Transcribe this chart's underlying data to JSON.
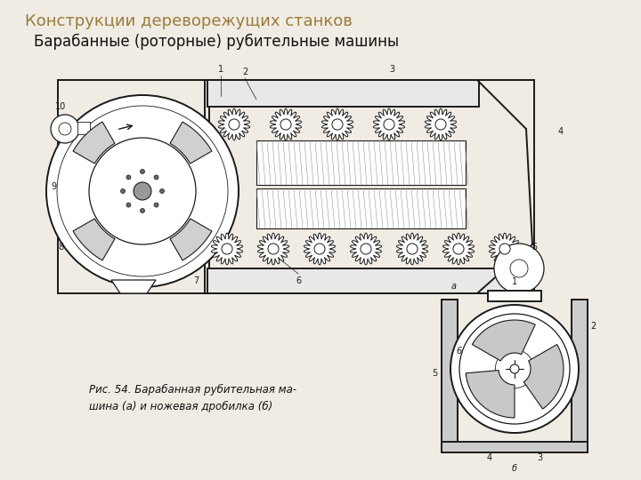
{
  "title": "Конструкции дереворежущих станков",
  "subtitle": "Барабанные (роторные) рубительные машины",
  "caption": "Рис. 54. Барабанная рубительная ма-\nшина (а) и ножевая дробилка (б)",
  "bg_color": "#f0ece4",
  "title_color": "#9B7B3A",
  "subtitle_color": "#111111",
  "caption_color": "#111111",
  "title_fontsize": 13,
  "subtitle_fontsize": 12,
  "caption_fontsize": 8.5,
  "fig_width": 7.2,
  "fig_height": 5.4,
  "dpi": 100
}
